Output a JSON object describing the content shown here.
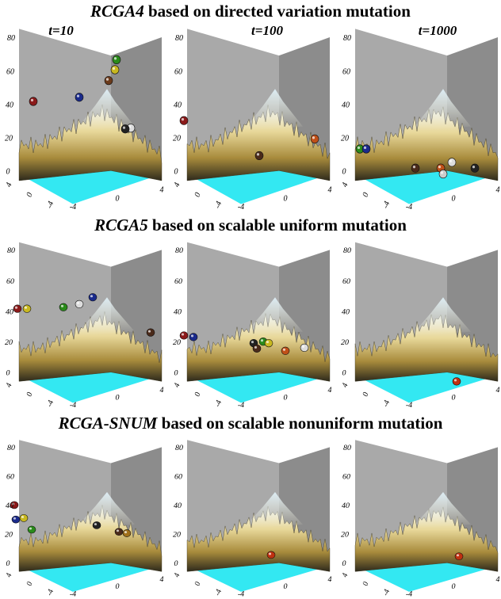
{
  "rows": [
    {
      "name": "RCGA4",
      "rest": "based on directed variation mutation"
    },
    {
      "name": "RCGA5",
      "rest": "based on scalable uniform  mutation"
    },
    {
      "name": "RCGA-SNUM",
      "rest": "based on scalable nonuniform  mutation"
    }
  ],
  "time_labels": [
    "t=10",
    "t=100",
    "t=1000"
  ],
  "z_ticks": [
    "0",
    "20",
    "40",
    "60",
    "80"
  ],
  "left_ticks": [
    "4",
    "0",
    "-4"
  ],
  "bottom_ticks": [
    "-4",
    "0",
    "4"
  ]
}
